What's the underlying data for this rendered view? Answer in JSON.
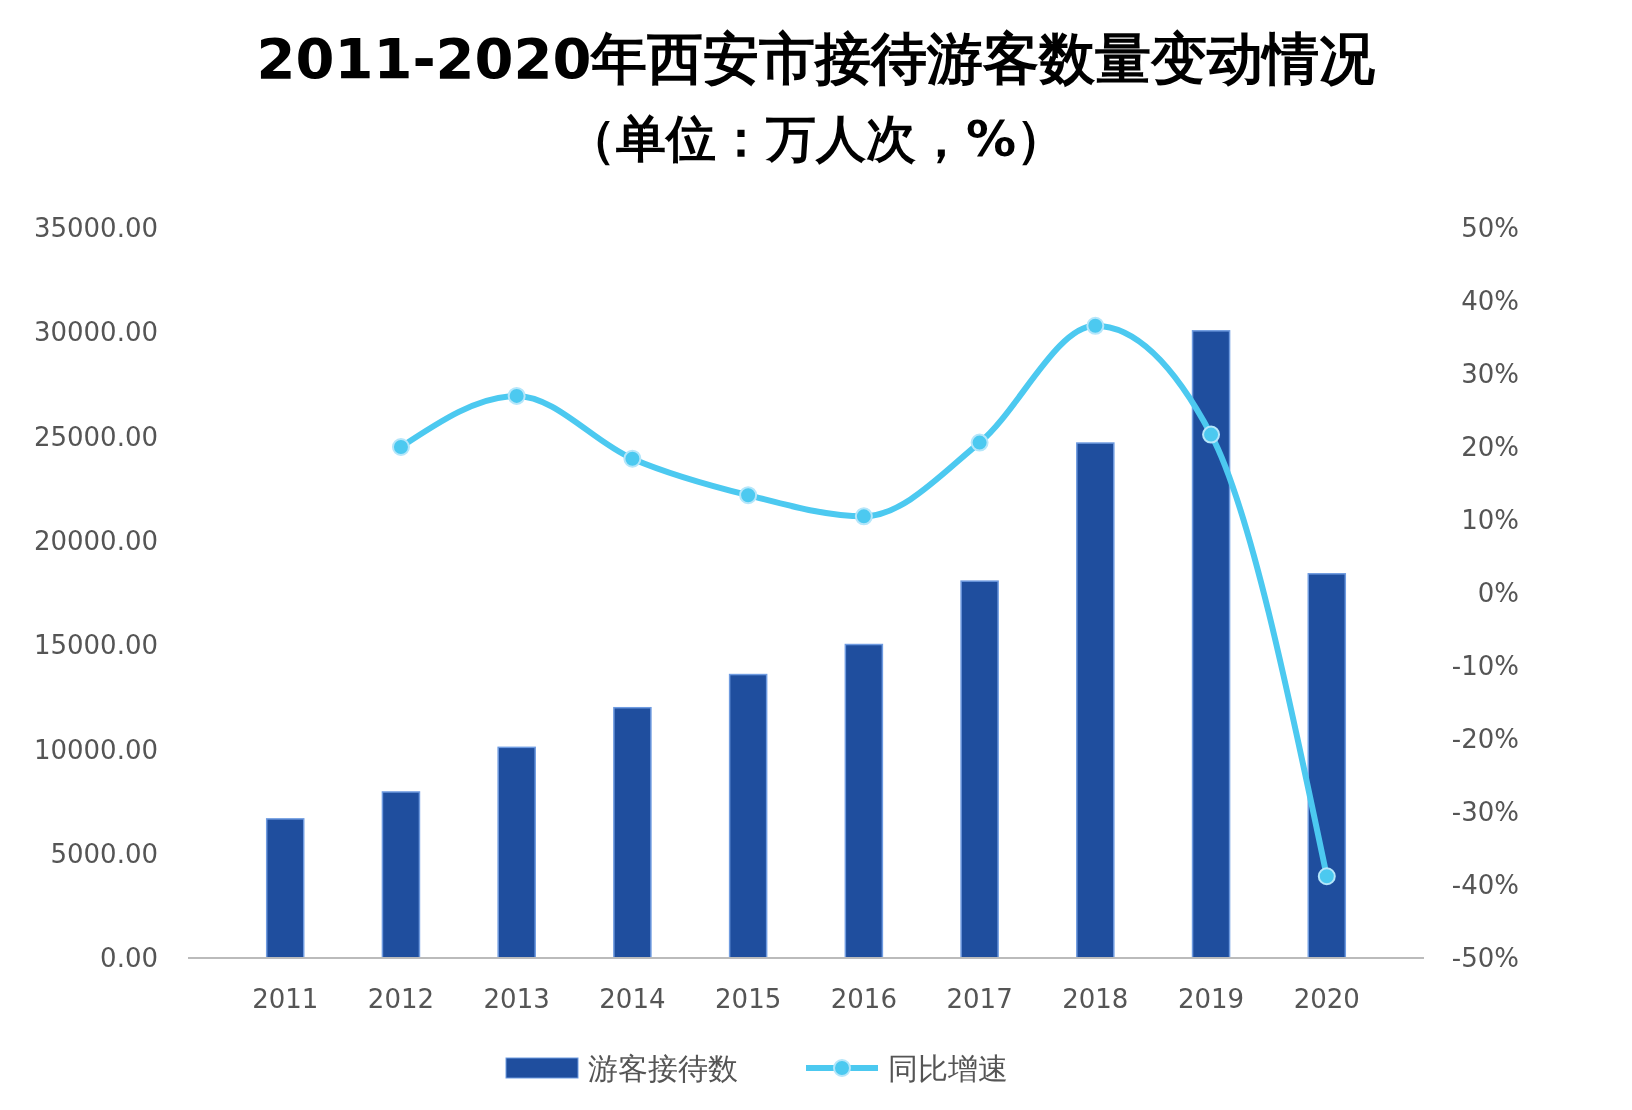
{
  "chart_data": {
    "type": "bar",
    "title": "2011-2020年西安市接待游客数量变动情况",
    "subtitle": "（单位：万人次，%）",
    "categories": [
      "2011",
      "2012",
      "2013",
      "2014",
      "2015",
      "2016",
      "2017",
      "2018",
      "2019",
      "2020"
    ],
    "series": [
      {
        "name": "游客接待数",
        "color": "#1f4e9e",
        "values": [
          6670,
          7960,
          10100,
          12000,
          13590,
          15030,
          18070,
          24690,
          30070,
          18420
        ]
      },
      {
        "name": "同比增速",
        "type": "line",
        "axis": "y2",
        "color": "#4cc9f0",
        "marker": "circle",
        "values": [
          null,
          20.0,
          27.0,
          18.4,
          13.4,
          10.5,
          20.6,
          36.6,
          21.7,
          -38.8
        ]
      }
    ],
    "ylim": [
      0,
      35000
    ],
    "yticks": [
      {
        "value": 0,
        "label": "0.00"
      },
      {
        "value": 5000,
        "label": "5000.00"
      },
      {
        "value": 10000,
        "label": "10000.00"
      },
      {
        "value": 15000,
        "label": "15000.00"
      },
      {
        "value": 20000,
        "label": "20000.00"
      },
      {
        "value": 25000,
        "label": "25000.00"
      },
      {
        "value": 30000,
        "label": "30000.00"
      },
      {
        "value": 35000,
        "label": "35000.00"
      }
    ],
    "y2lim": [
      -50,
      50
    ],
    "y2ticks": [
      {
        "value": -50,
        "label": "-50%"
      },
      {
        "value": -40,
        "label": "-40%"
      },
      {
        "value": -30,
        "label": "-30%"
      },
      {
        "value": -20,
        "label": "-20%"
      },
      {
        "value": -10,
        "label": "-10%"
      },
      {
        "value": 0,
        "label": "0%"
      },
      {
        "value": 10,
        "label": "10%"
      },
      {
        "value": 20,
        "label": "20%"
      },
      {
        "value": 30,
        "label": "30%"
      },
      {
        "value": 40,
        "label": "40%"
      },
      {
        "value": 50,
        "label": "50%"
      }
    ],
    "grid": false,
    "legend": "bottom"
  }
}
